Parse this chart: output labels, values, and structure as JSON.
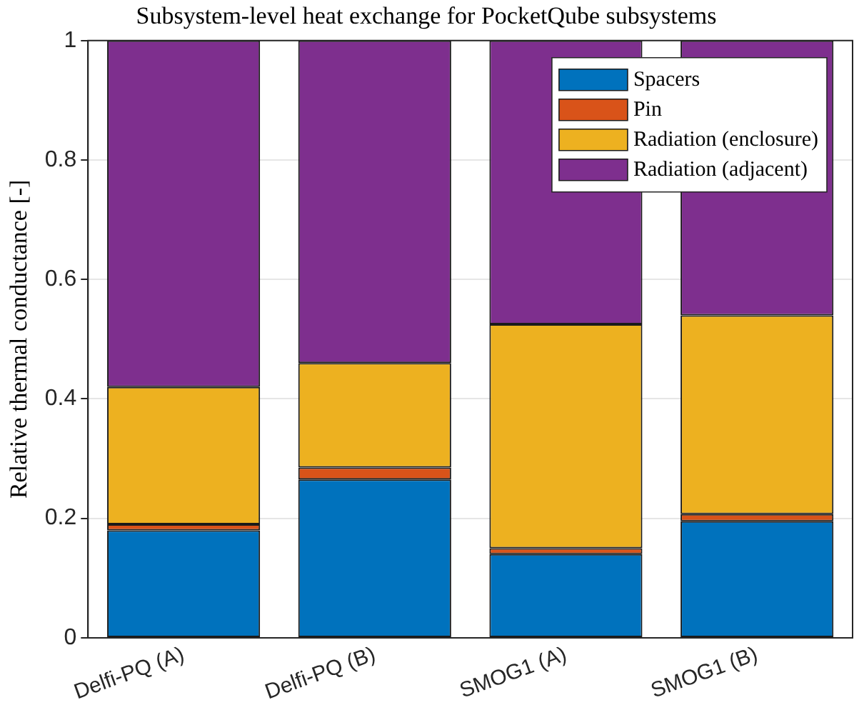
{
  "chart_data": {
    "type": "bar",
    "stacked": true,
    "title": "Subsystem-level heat exchange for PocketQube subsystems",
    "ylabel": "Relative thermal conductance [-]",
    "categories": [
      "Delfi-PQ (A)",
      "Delfi-PQ (B)",
      "SMOG1 (A)",
      "SMOG1 (B)"
    ],
    "series": [
      {
        "name": "Spacers",
        "color": "#0072bd",
        "values": [
          0.18,
          0.265,
          0.14,
          0.195
        ]
      },
      {
        "name": "Pin",
        "color": "#d95319",
        "values": [
          0.01,
          0.02,
          0.01,
          0.012
        ]
      },
      {
        "name": "Radiation (enclosure)",
        "color": "#edb120",
        "values": [
          0.23,
          0.175,
          0.375,
          0.333
        ]
      },
      {
        "name": "Radiation (adjacent)",
        "color": "#7e2f8e",
        "values": [
          0.58,
          0.54,
          0.475,
          0.46
        ]
      }
    ],
    "ylim": [
      0,
      1
    ],
    "yticks": [
      0,
      0.2,
      0.4,
      0.6,
      0.8,
      1
    ],
    "grid": "y",
    "legend": "top right"
  }
}
